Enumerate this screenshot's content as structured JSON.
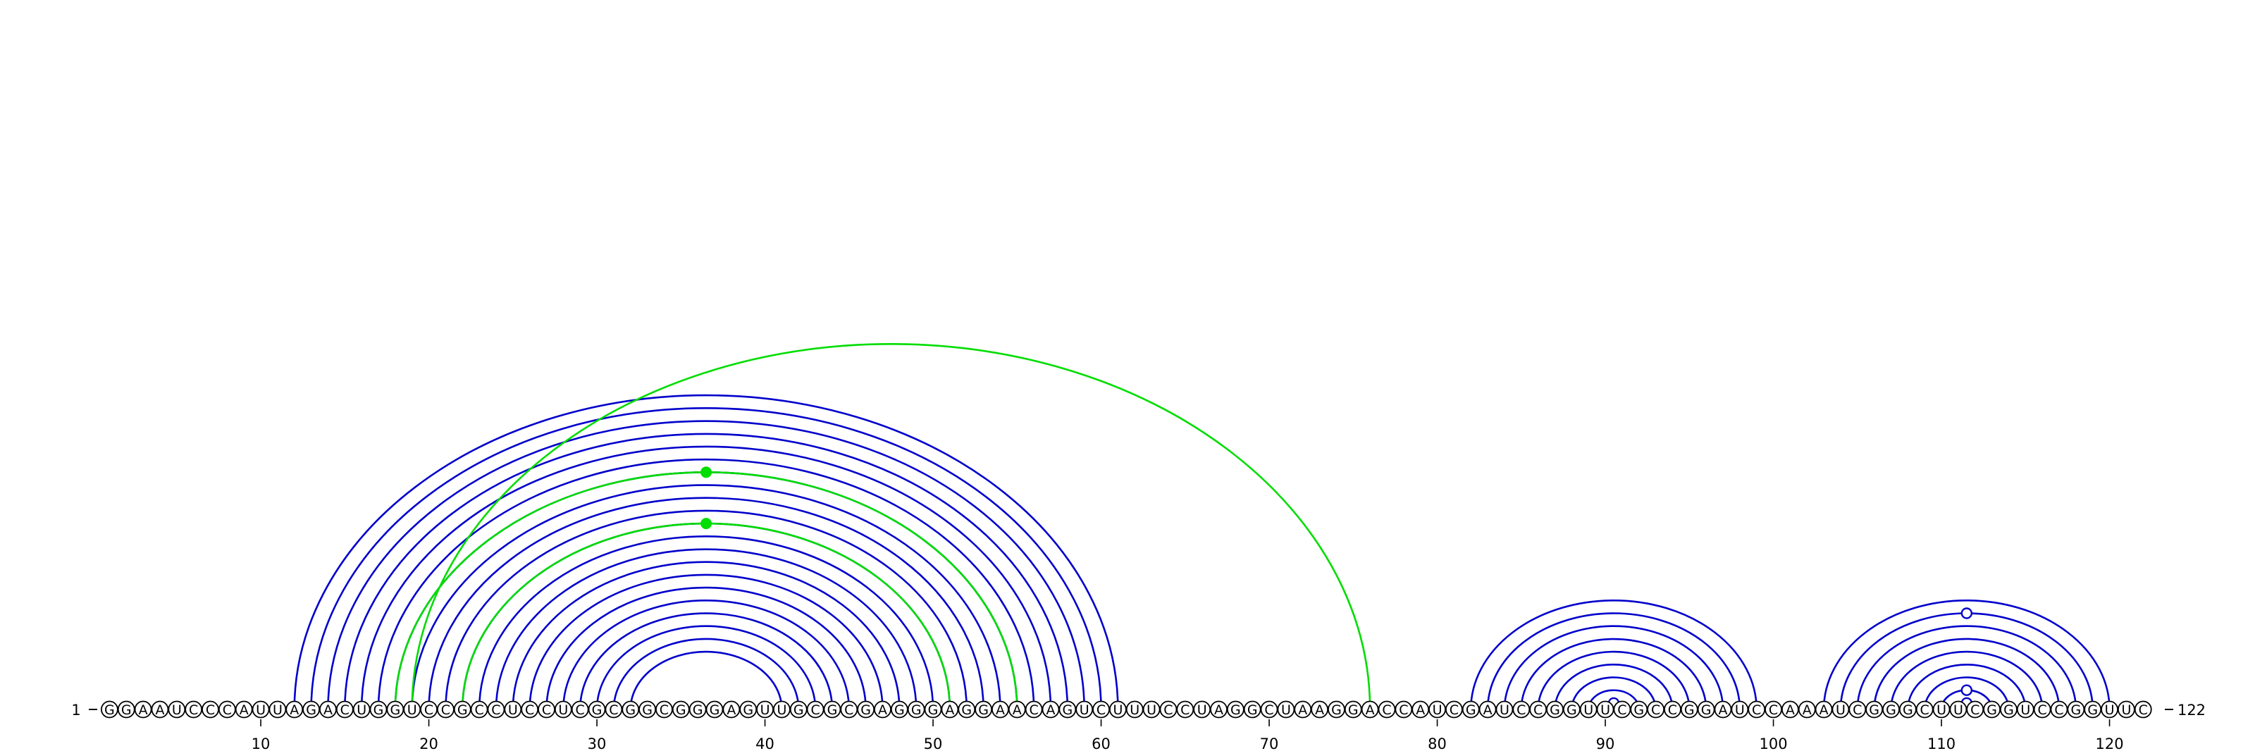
{
  "sequence": {
    "start_label": "1",
    "end_label": "122",
    "letters": [
      "G",
      "G",
      "A",
      "A",
      "U",
      "C",
      "C",
      "C",
      "A",
      "U",
      "U",
      "A",
      "G",
      "A",
      "C",
      "U",
      "G",
      "G",
      "U",
      "C",
      "C",
      "G",
      "C",
      "C",
      "U",
      "C",
      "C",
      "U",
      "C",
      "G",
      "C",
      "G",
      "G",
      "C",
      "G",
      "G",
      "G",
      "A",
      "G",
      "U",
      "U",
      "G",
      "C",
      "G",
      "C",
      "G",
      "A",
      "G",
      "G",
      "G",
      "A",
      "G",
      "G",
      "A",
      "A",
      "C",
      "A",
      "G",
      "U",
      "C",
      "U",
      "U",
      "U",
      "C",
      "C",
      "U",
      "A",
      "G",
      "G",
      "C",
      "U",
      "A",
      "A",
      "G",
      "G",
      "A",
      "C",
      "C",
      "A",
      "U",
      "C",
      "G",
      "A",
      "U",
      "C",
      "C",
      "G",
      "G",
      "U",
      "U",
      "C",
      "G",
      "C",
      "C",
      "G",
      "G",
      "A",
      "U",
      "C",
      "C",
      "A",
      "A",
      "A",
      "U",
      "C",
      "G",
      "G",
      "G",
      "C",
      "U",
      "U",
      "C",
      "G",
      "G",
      "U",
      "C",
      "C",
      "G",
      "G",
      "U",
      "U",
      "C"
    ]
  },
  "axis": {
    "tick_labels": [
      "10",
      "20",
      "30",
      "40",
      "50",
      "60",
      "70",
      "80",
      "90",
      "100",
      "110",
      "120"
    ],
    "tick_positions": [
      10,
      20,
      30,
      40,
      50,
      60,
      70,
      80,
      90,
      100,
      110,
      120
    ]
  },
  "colors": {
    "stem_arc": "#0000cc",
    "pseudoknot_arc": "#00dd00",
    "nucleotide_stroke": "#000000",
    "nucleotide_fill": "#ffffff"
  },
  "arcs": {
    "main_stem": [
      {
        "from": 12,
        "to": 61
      },
      {
        "from": 13,
        "to": 60
      },
      {
        "from": 14,
        "to": 59
      },
      {
        "from": 15,
        "to": 58
      },
      {
        "from": 16,
        "to": 57
      },
      {
        "from": 17,
        "to": 56
      },
      {
        "from": 18,
        "to": 55
      },
      {
        "from": 19,
        "to": 54
      },
      {
        "from": 20,
        "to": 53
      },
      {
        "from": 21,
        "to": 52
      },
      {
        "from": 22,
        "to": 51
      },
      {
        "from": 23,
        "to": 50
      },
      {
        "from": 24,
        "to": 49
      },
      {
        "from": 25,
        "to": 48
      }
    ],
    "inner_stem": [
      {
        "from": 26,
        "to": 47
      },
      {
        "from": 27,
        "to": 46
      },
      {
        "from": 28,
        "to": 45
      },
      {
        "from": 29,
        "to": 44
      },
      {
        "from": 30,
        "to": 43
      },
      {
        "from": 31,
        "to": 42
      },
      {
        "from": 32,
        "to": 41
      }
    ],
    "hairpin_1": [
      {
        "from": 82,
        "to": 99
      },
      {
        "from": 83,
        "to": 98
      },
      {
        "from": 84,
        "to": 97
      },
      {
        "from": 85,
        "to": 96
      },
      {
        "from": 86,
        "to": 95
      },
      {
        "from": 87,
        "to": 94
      },
      {
        "from": 88,
        "to": 93
      },
      {
        "from": 89,
        "to": 92
      }
    ],
    "hairpin_2": [
      {
        "from": 103,
        "to": 120
      },
      {
        "from": 104,
        "to": 119
      },
      {
        "from": 105,
        "to": 118
      },
      {
        "from": 106,
        "to": 117
      },
      {
        "from": 107,
        "to": 116
      },
      {
        "from": 108,
        "to": 115
      },
      {
        "from": 109,
        "to": 114
      },
      {
        "from": 110,
        "to": 113
      }
    ],
    "pseudoknot": [
      {
        "from": 19,
        "to": 76
      },
      {
        "from": 18,
        "to": 55
      },
      {
        "from": 22,
        "to": 51
      }
    ]
  },
  "markers": {
    "filled_green": [
      {
        "from": 18,
        "to": 55
      },
      {
        "from": 22,
        "to": 51
      }
    ],
    "open_circles": [
      {
        "from": 90,
        "to": 91
      },
      {
        "from": 110,
        "to": 113
      },
      {
        "from": 104,
        "to": 119
      },
      {
        "from": 111,
        "to": 112
      }
    ]
  }
}
